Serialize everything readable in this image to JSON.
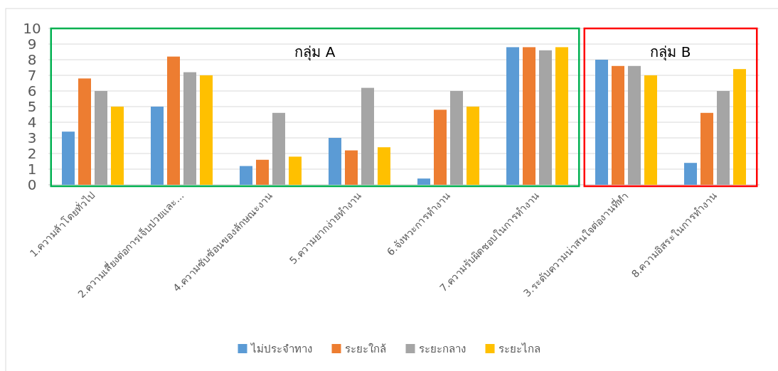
{
  "chart_data": {
    "type": "bar",
    "categories": [
      "1.ความล้าโดยทั่วไป",
      "2.ความเสี่ยงต่อการเจ็บป่วยและ...",
      "4.ความซับซ้อนของลักษณะงาน",
      "5.ความยากง่ายทำงาน",
      "6.จังหวะการทำงาน",
      "7.ความรับผิดชอบในการทำงาน",
      "3.ระดับความน่าสนใจต่องานที่ทำ",
      "8.ความอิสระในการทำงาน"
    ],
    "series": [
      {
        "name": "ไม่ประจำทาง",
        "color": "#5b9bd5",
        "values": [
          3.4,
          5.0,
          1.2,
          3.0,
          0.4,
          8.8,
          8.0,
          1.4
        ]
      },
      {
        "name": "ระยะใกล้",
        "color": "#ed7d31",
        "values": [
          6.8,
          8.2,
          1.6,
          2.2,
          4.8,
          8.8,
          7.6,
          4.6
        ]
      },
      {
        "name": "ระยะกลาง",
        "color": "#a5a5a5",
        "values": [
          6.0,
          7.2,
          4.6,
          6.2,
          6.0,
          8.6,
          7.6,
          6.0
        ]
      },
      {
        "name": "ระยะไกล",
        "color": "#ffc000",
        "values": [
          5.0,
          7.0,
          1.8,
          2.4,
          5.0,
          8.8,
          7.0,
          7.4
        ]
      }
    ],
    "ylim": [
      0,
      10
    ],
    "yticks": [
      0,
      1,
      2,
      3,
      4,
      5,
      6,
      7,
      8,
      9,
      10
    ],
    "grid": "y",
    "legend": "bottom",
    "annotations": [
      "กลุ่ม A",
      "กลุ่ม B"
    ]
  }
}
